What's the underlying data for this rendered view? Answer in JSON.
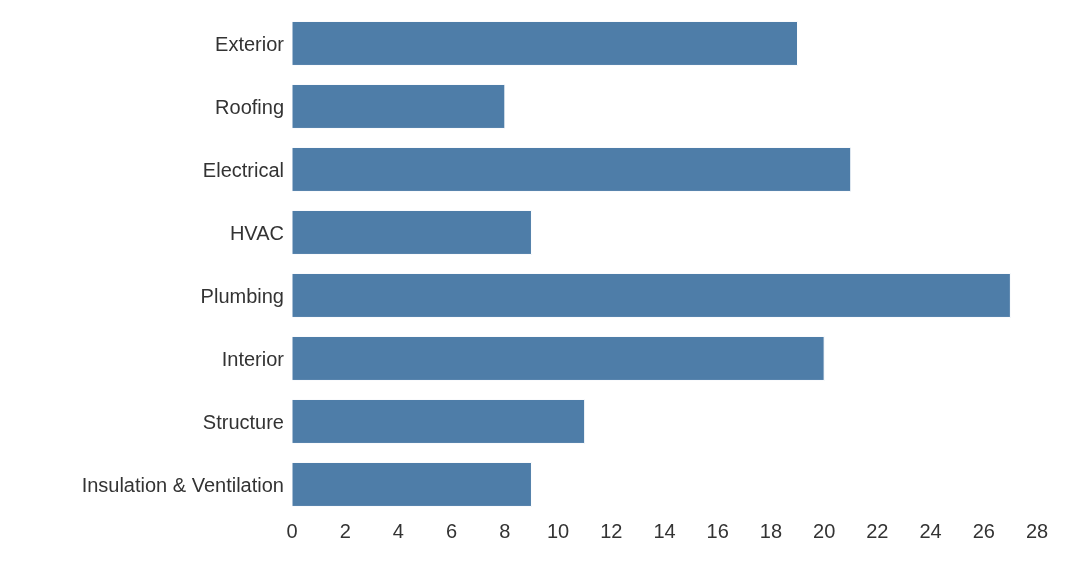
{
  "chart_data": {
    "type": "bar",
    "orientation": "horizontal",
    "categories": [
      "Exterior",
      "Roofing",
      "Electrical",
      "HVAC",
      "Plumbing",
      "Interior",
      "Structure",
      "Insulation & Ventilation"
    ],
    "values": [
      19,
      8,
      21,
      9,
      27,
      20,
      11,
      9
    ],
    "color": "#4e7da8",
    "xlim": [
      0,
      28
    ],
    "xticks": [
      0,
      2,
      4,
      6,
      8,
      10,
      12,
      14,
      16,
      18,
      20,
      22,
      24,
      26,
      28
    ],
    "grid": false,
    "legend": false
  }
}
